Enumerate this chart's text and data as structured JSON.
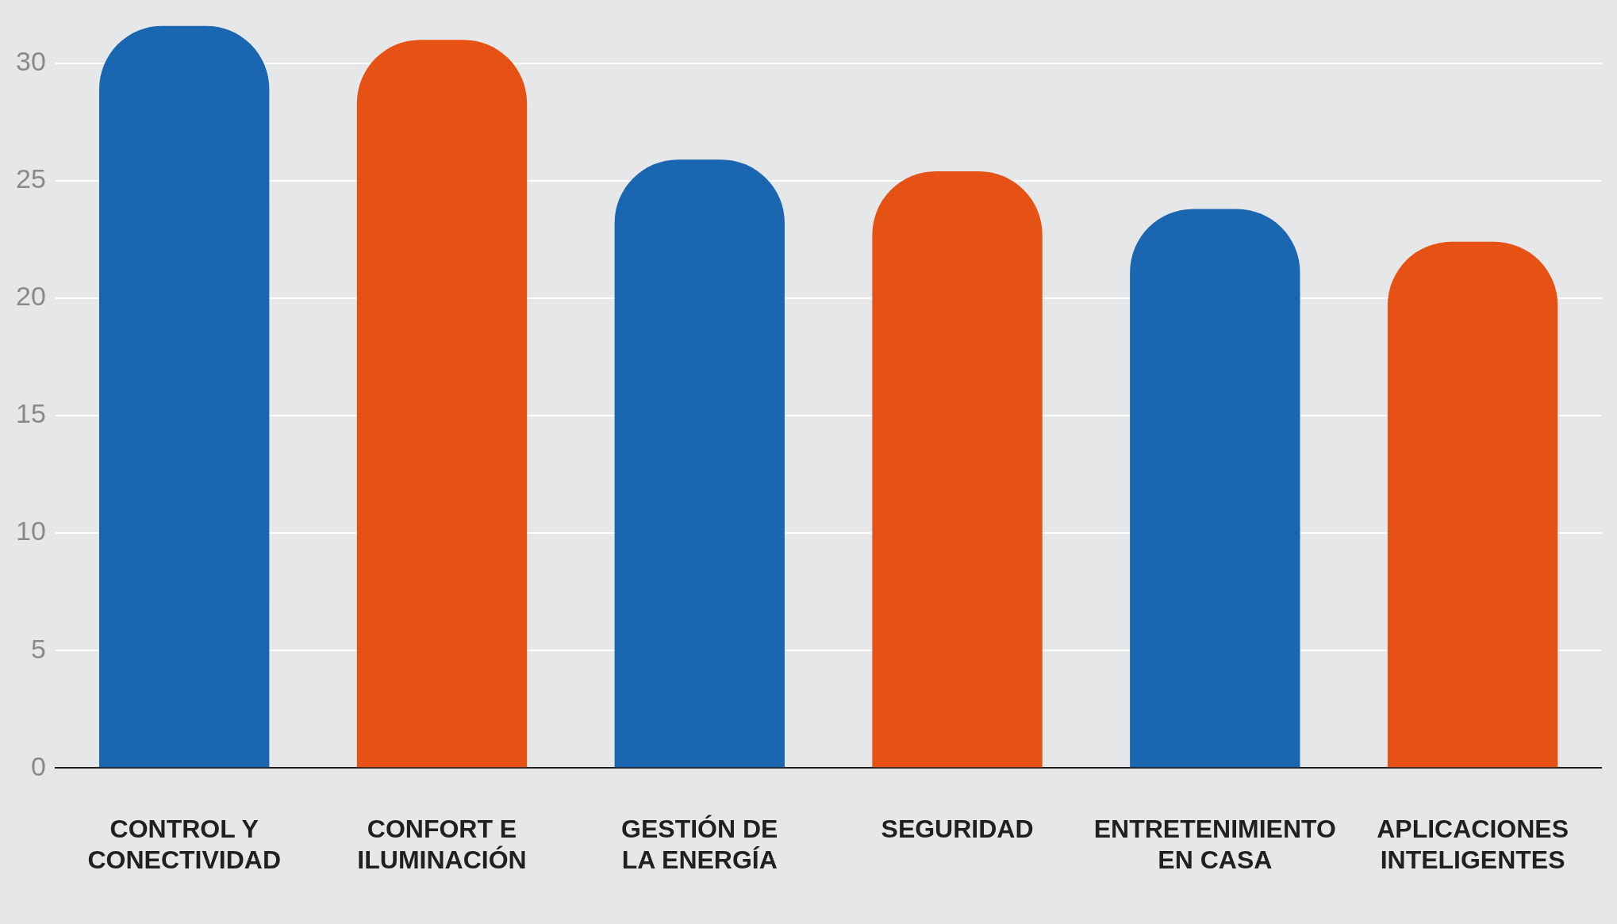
{
  "chart_data": {
    "type": "bar",
    "categories": [
      "CONTROL Y CONECTIVIDAD",
      "CONFORT E ILUMINACIÓN",
      "GESTIÓN DE LA ENERGÍA",
      "SEGURIDAD",
      "ENTRETENIMIENTO EN CASA",
      "APLICACIONES INTELIGENTES"
    ],
    "values": [
      31.6,
      31.0,
      25.9,
      25.4,
      23.8,
      22.4
    ],
    "colors": [
      "#1b66b1",
      "#e65214",
      "#1b66b1",
      "#e65214",
      "#1b66b1",
      "#e65214"
    ],
    "ylim": [
      0,
      31.6
    ],
    "yticks": [
      0,
      5,
      10,
      15,
      20,
      25,
      30
    ],
    "grid": "y",
    "legend": false
  }
}
